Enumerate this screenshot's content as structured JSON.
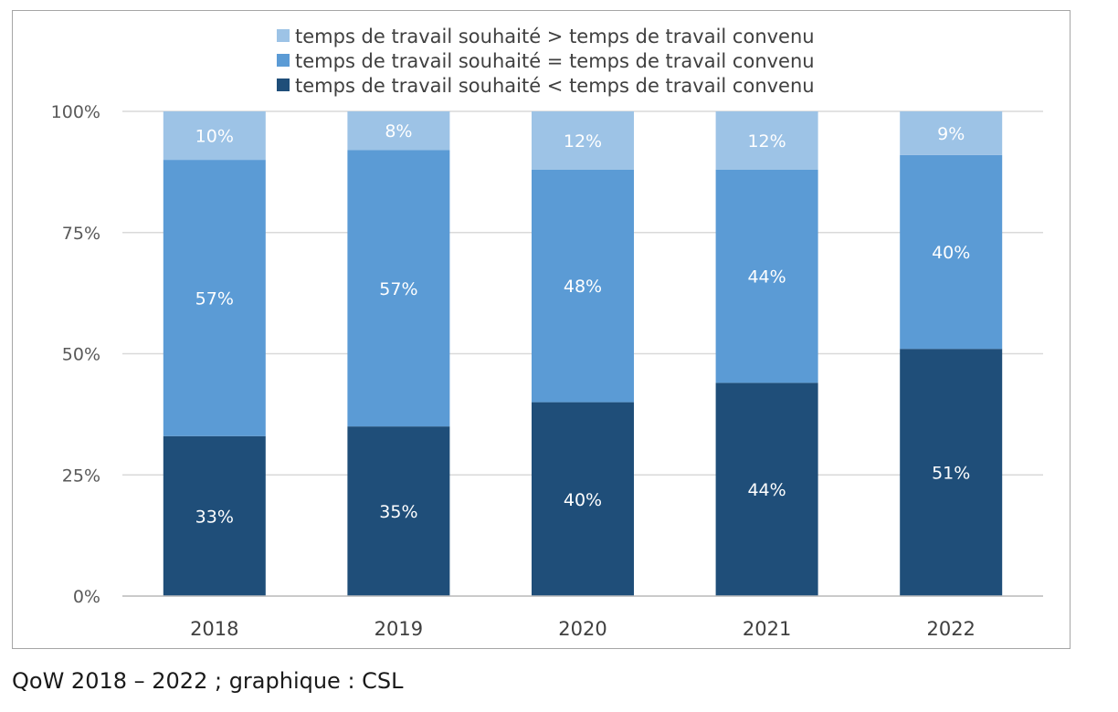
{
  "chart_data": {
    "type": "bar",
    "stacked": true,
    "categories": [
      "2018",
      "2019",
      "2020",
      "2021",
      "2022"
    ],
    "series": [
      {
        "name": "temps de travail souhaité < temps de travail convenu",
        "color": "#1f4e79",
        "values": [
          33,
          35,
          40,
          44,
          51
        ],
        "labels": [
          "33%",
          "35%",
          "40%",
          "44%",
          "51%"
        ]
      },
      {
        "name": "temps de travail souhaité = temps de travail convenu",
        "color": "#5b9bd5",
        "values": [
          57,
          57,
          48,
          44,
          40
        ],
        "labels": [
          "57%",
          "57%",
          "48%",
          "44%",
          "40%"
        ]
      },
      {
        "name": "temps de travail souhaité > temps de travail convenu",
        "color": "#9dc3e6",
        "values": [
          10,
          8,
          12,
          12,
          9
        ],
        "labels": [
          "10%",
          "8%",
          "12%",
          "12%",
          "9%"
        ]
      }
    ],
    "legend_order": [
      2,
      1,
      0
    ],
    "legend_position": "top",
    "ylim": [
      0,
      100
    ],
    "yticks": [
      0,
      25,
      50,
      75,
      100
    ],
    "ytick_labels": [
      "0%",
      "25%",
      "50%",
      "75%",
      "100%"
    ],
    "grid": true
  },
  "source_note": "QoW 2018 – 2022 ; graphique : CSL"
}
